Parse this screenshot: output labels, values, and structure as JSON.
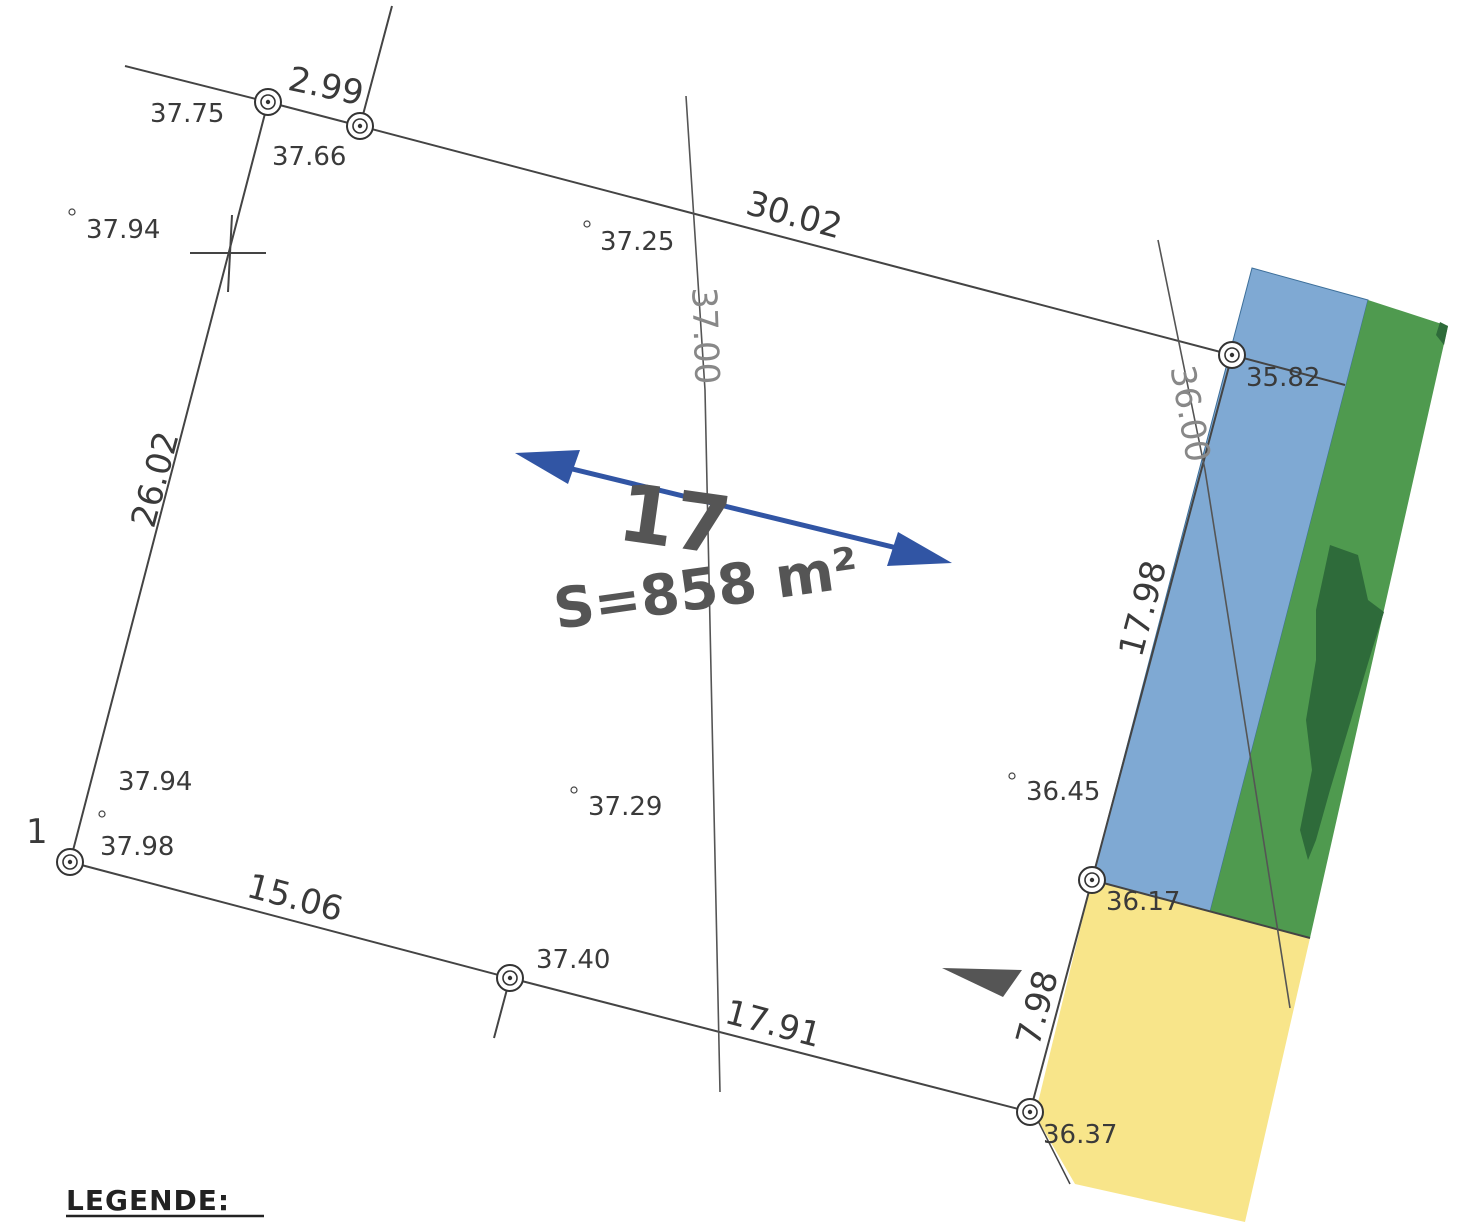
{
  "plot": {
    "lot_number": "17",
    "area_label": "S=858 m²",
    "corner_label": "1"
  },
  "boundary_dimensions": {
    "top_short": "2.99",
    "top": "30.02",
    "left": "26.02",
    "bottom_left": "15.06",
    "bottom_right": "17.91",
    "right_upper": "17.98",
    "right_lower": "7.98"
  },
  "contours": {
    "center": "37.00",
    "right": "36.00"
  },
  "elevations": {
    "e1": "37.75",
    "e2": "37.66",
    "e3": "37.94",
    "e4": "37.25",
    "e5": "35.82",
    "e6": "37.94",
    "e7": "37.98",
    "e8": "37.29",
    "e9": "36.45",
    "e10": "36.17",
    "e11": "37.40",
    "e12": "36.37"
  },
  "legend": {
    "title": "LEGENDE:"
  },
  "colors": {
    "blue_strip": "#7fa9d3",
    "green_strip": "#4f9a4f",
    "dark_green": "#2e6b3a",
    "yellow_area": "#f8e58a",
    "arrow": "#3155a4"
  }
}
